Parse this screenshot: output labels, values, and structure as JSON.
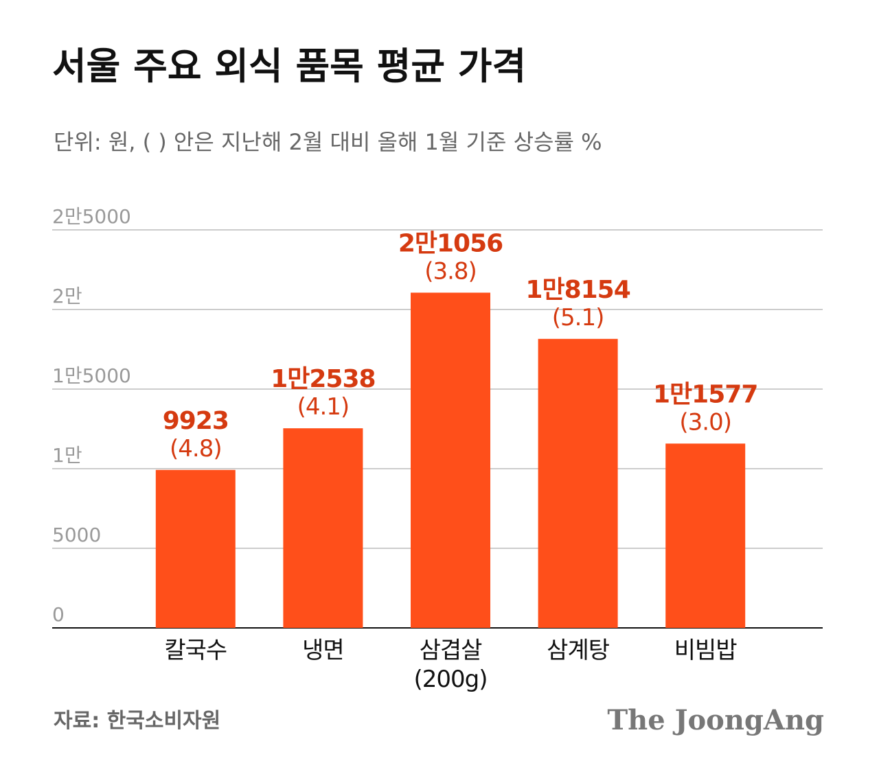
{
  "chart_data": {
    "type": "bar",
    "title": "서울 주요 외식 품목 평균 가격",
    "subtitle": "단위: 원, ( ) 안은 지난해 2월 대비 올해 1월 기준 상승률 %",
    "categories": [
      "칼국수",
      "냉면",
      "삼겹살\n(200g)",
      "삼계탕",
      "비빔밥"
    ],
    "values": [
      9923,
      12538,
      21056,
      18154,
      11577
    ],
    "value_labels": [
      "9923",
      "1만2538",
      "2만1056",
      "1만8154",
      "1만1577"
    ],
    "change_labels": [
      "(4.8)",
      "(4.1)",
      "(3.8)",
      "(5.1)",
      "(3.0)"
    ],
    "color": "#ff4f1a",
    "ylim": [
      0,
      25000
    ],
    "yticks": [
      0,
      5000,
      {
        "value": 10000,
        "label": "1만"
      },
      {
        "value": 15000,
        "label": "1만5000"
      },
      {
        "value": 20000,
        "label": "2만"
      },
      {
        "value": 25000,
        "label": "2만5000"
      }
    ],
    "grid": true,
    "source": "자료: 한국소비자원",
    "brand": "The JoongAng"
  }
}
